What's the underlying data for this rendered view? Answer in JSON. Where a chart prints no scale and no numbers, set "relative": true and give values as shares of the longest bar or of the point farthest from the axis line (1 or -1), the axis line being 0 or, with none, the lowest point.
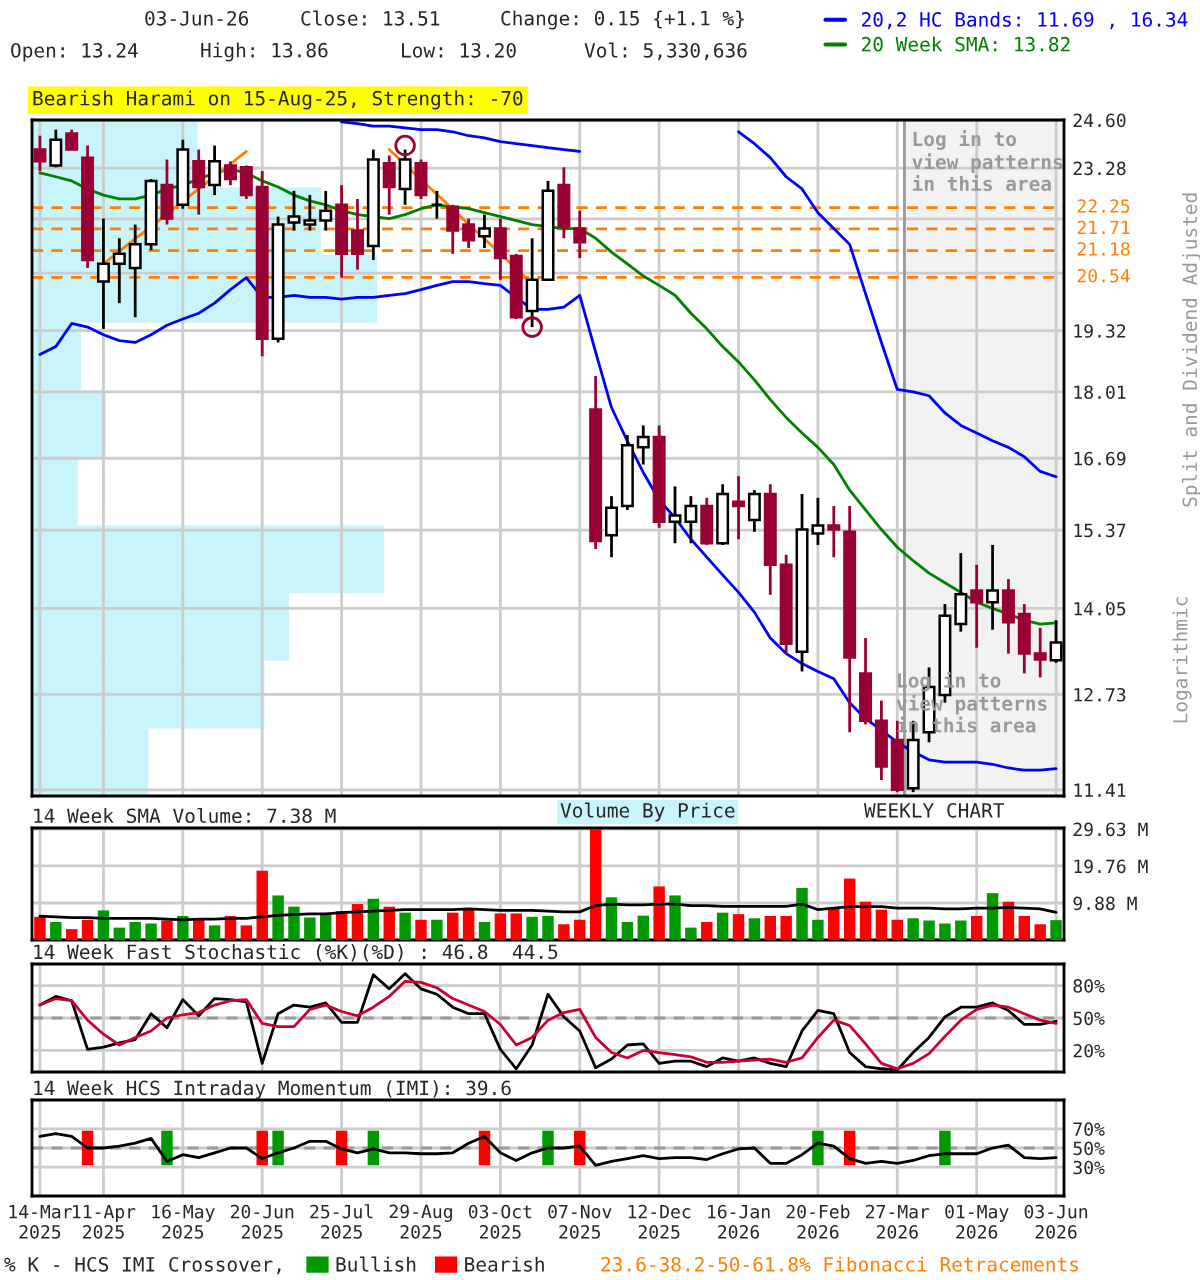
{
  "chart_data": [
    {
      "type": "candlestick",
      "log": true,
      "grid": true,
      "legend": "top right",
      "tick_labels": "y",
      "ylabel": "Split and Dividend Adjusted",
      "ylim": [
        11.33,
        24.6
      ],
      "yticks": [
        {
          "value": 11.41,
          "label": "11.41"
        },
        {
          "value": 12.73,
          "label": "12.73"
        },
        {
          "value": 14.05,
          "label": "14.05"
        },
        {
          "value": 15.37,
          "label": "15.37"
        },
        {
          "value": 16.69,
          "label": "16.69"
        },
        {
          "value": 18.01,
          "label": "18.01"
        },
        {
          "value": 19.32,
          "label": "19.32"
        },
        {
          "value": 20.64,
          "label": null
        },
        {
          "value": 21.96,
          "label": null
        },
        {
          "value": 23.28,
          "label": "23.28"
        },
        {
          "value": 24.6,
          "label": "24.60"
        }
      ],
      "categories": [
        "14-Mar\n2025",
        null,
        null,
        null,
        "11-Apr\n2025",
        null,
        null,
        null,
        null,
        "16-May\n2025",
        null,
        null,
        null,
        null,
        "20-Jun\n2025",
        null,
        null,
        null,
        null,
        "25-Jul\n2025",
        null,
        null,
        null,
        null,
        "29-Aug\n2025",
        null,
        null,
        null,
        null,
        "03-Oct\n2025",
        null,
        null,
        null,
        null,
        "07-Nov\n2025",
        null,
        null,
        null,
        null,
        "12-Dec\n2025",
        null,
        null,
        null,
        null,
        "16-Jan\n2026",
        null,
        null,
        null,
        null,
        "20-Feb\n2026",
        null,
        null,
        null,
        null,
        "27-Mar\n2026",
        null,
        null,
        null,
        null,
        "01-May\n2026",
        null,
        null,
        null,
        null,
        "03-Jun\n2026"
      ],
      "ohlc": [
        [
          23.78,
          24.16,
          23.2,
          23.46
        ],
        [
          23.35,
          24.33,
          23.3,
          24.05
        ],
        [
          24.22,
          24.33,
          23.78,
          23.78
        ],
        [
          23.56,
          23.89,
          20.76,
          20.95
        ],
        [
          20.44,
          21.97,
          19.36,
          20.86
        ],
        [
          20.86,
          21.48,
          19.94,
          21.1
        ],
        [
          20.76,
          21.82,
          19.62,
          21.33
        ],
        [
          21.33,
          22.99,
          21.19,
          22.94
        ],
        [
          22.83,
          23.51,
          21.82,
          21.97
        ],
        [
          22.32,
          24.05,
          22.22,
          23.78
        ],
        [
          23.46,
          23.78,
          22.07,
          22.78
        ],
        [
          22.83,
          23.89,
          22.57,
          23.46
        ],
        [
          23.35,
          23.46,
          22.83,
          22.99
        ],
        [
          23.3,
          23.35,
          22.47,
          22.57
        ],
        [
          22.78,
          23.2,
          18.76,
          19.14
        ],
        [
          19.14,
          22.02,
          19.06,
          21.82
        ],
        [
          21.87,
          22.68,
          21.67,
          22.02
        ],
        [
          21.82,
          22.57,
          21.67,
          21.92
        ],
        [
          21.92,
          22.68,
          21.67,
          22.17
        ],
        [
          22.32,
          22.83,
          20.53,
          21.1
        ],
        [
          21.67,
          22.47,
          20.72,
          21.1
        ],
        [
          21.29,
          23.78,
          20.95,
          23.51
        ],
        [
          23.41,
          23.62,
          22.07,
          22.78
        ],
        [
          22.73,
          23.78,
          22.32,
          23.51
        ],
        [
          23.41,
          23.51,
          22.47,
          22.57
        ],
        [
          22.32,
          22.68,
          21.97,
          22.32
        ],
        [
          22.27,
          22.32,
          21.1,
          21.67
        ],
        [
          21.82,
          21.97,
          21.24,
          21.43
        ],
        [
          21.53,
          22.07,
          21.24,
          21.72
        ],
        [
          21.72,
          21.97,
          20.48,
          21.0
        ],
        [
          21.05,
          21.1,
          19.58,
          19.62
        ],
        [
          19.76,
          21.48,
          19.4,
          20.48
        ],
        [
          20.48,
          22.94,
          20.46,
          22.68
        ],
        [
          22.83,
          23.3,
          21.48,
          21.77
        ],
        [
          21.72,
          22.17,
          21.0,
          21.38
        ],
        [
          17.65,
          18.34,
          15.04,
          15.18
        ],
        [
          15.28,
          15.98,
          14.9,
          15.77
        ],
        [
          15.8,
          17.14,
          15.73,
          16.94
        ],
        [
          16.9,
          17.33,
          16.57,
          17.1
        ],
        [
          17.1,
          17.33,
          15.41,
          15.52
        ],
        [
          15.52,
          16.16,
          15.14,
          15.63
        ],
        [
          15.52,
          15.98,
          15.14,
          15.8
        ],
        [
          15.8,
          15.95,
          15.11,
          15.14
        ],
        [
          15.14,
          16.2,
          15.11,
          16.02
        ],
        [
          15.88,
          16.35,
          15.21,
          15.8
        ],
        [
          15.55,
          16.09,
          15.34,
          16.02
        ],
        [
          16.02,
          16.2,
          14.27,
          14.77
        ],
        [
          14.77,
          14.94,
          13.34,
          13.49
        ],
        [
          13.37,
          16.02,
          13.07,
          15.38
        ],
        [
          15.31,
          15.95,
          15.11,
          15.45
        ],
        [
          15.45,
          15.8,
          14.9,
          15.38
        ],
        [
          15.34,
          15.8,
          12.19,
          13.28
        ],
        [
          13.04,
          13.58,
          12.3,
          12.35
        ],
        [
          12.35,
          12.64,
          11.54,
          11.72
        ],
        [
          12.08,
          12.35,
          11.38,
          11.41
        ],
        [
          11.43,
          12.35,
          11.38,
          12.08
        ],
        [
          12.19,
          13.13,
          12.05,
          12.84
        ],
        [
          12.72,
          14.12,
          12.61,
          13.93
        ],
        [
          13.8,
          14.97,
          13.68,
          14.28
        ],
        [
          14.34,
          14.77,
          13.43,
          14.15
        ],
        [
          14.15,
          15.11,
          13.71,
          14.34
        ],
        [
          14.34,
          14.53,
          13.34,
          13.83
        ],
        [
          13.96,
          14.12,
          13.04,
          13.34
        ],
        [
          13.34,
          13.74,
          12.98,
          13.25
        ],
        [
          13.24,
          13.86,
          13.2,
          13.51
        ]
      ],
      "series": [
        {
          "type": "line",
          "name": "20,2 HC Bands: 11.69 , 16.34",
          "color": "#0000ff",
          "values": [
            null,
            null,
            null,
            null,
            null,
            null,
            null,
            null,
            null,
            null,
            null,
            null,
            null,
            null,
            null,
            null,
            null,
            null,
            null,
            24.55,
            24.5,
            24.43,
            24.43,
            24.38,
            24.33,
            24.33,
            24.27,
            24.16,
            24.1,
            24.0,
            23.94,
            23.89,
            23.83,
            23.78,
            23.73,
            null,
            null,
            null,
            null,
            null,
            null,
            null,
            null,
            null,
            24.27,
            23.94,
            23.56,
            23.05,
            22.73,
            22.12,
            21.72,
            21.33,
            20.16,
            19.06,
            18.06,
            18.01,
            17.93,
            17.58,
            17.33,
            17.18,
            17.03,
            16.9,
            16.72,
            16.44,
            16.34
          ]
        },
        {
          "type": "line",
          "color": "#0000ff",
          "values": [
            18.8,
            18.97,
            19.48,
            19.4,
            19.23,
            19.1,
            19.06,
            19.23,
            19.44,
            19.58,
            19.71,
            19.94,
            20.25,
            20.53,
            20.07,
            20.07,
            20.12,
            20.07,
            20.07,
            20.03,
            20.07,
            20.07,
            20.12,
            20.16,
            20.25,
            20.35,
            20.44,
            20.44,
            20.39,
            20.35,
            20.07,
            19.8,
            19.8,
            19.85,
            20.12,
            18.85,
            17.69,
            17.02,
            16.42,
            15.91,
            15.59,
            15.21,
            14.9,
            14.6,
            14.31,
            13.99,
            13.58,
            13.34,
            13.19,
            13.07,
            12.96,
            12.61,
            12.38,
            12.22,
            12.05,
            11.92,
            11.81,
            11.78,
            11.78,
            11.78,
            11.75,
            11.7,
            11.67,
            11.67,
            11.69
          ]
        },
        {
          "type": "line",
          "name": "20 Week SMA: 13.82",
          "color": "#008000",
          "values": [
            23.15,
            23.05,
            22.94,
            22.73,
            22.57,
            22.47,
            22.47,
            22.57,
            22.73,
            22.83,
            22.99,
            23.15,
            23.25,
            23.15,
            22.94,
            22.78,
            22.57,
            22.42,
            22.32,
            22.17,
            22.07,
            22.02,
            21.97,
            22.07,
            22.22,
            22.32,
            22.27,
            22.22,
            22.12,
            22.02,
            21.92,
            21.82,
            21.77,
            21.72,
            21.72,
            21.48,
            21.14,
            20.86,
            20.57,
            20.35,
            20.12,
            19.71,
            19.36,
            18.97,
            18.64,
            18.26,
            17.85,
            17.49,
            17.18,
            16.9,
            16.57,
            16.09,
            15.73,
            15.38,
            15.07,
            14.84,
            14.63,
            14.47,
            14.31,
            14.15,
            14.05,
            13.96,
            13.86,
            13.8,
            13.82
          ]
        },
        {
          "type": "line",
          "color": "#ff7f00",
          "values": [
            null,
            null,
            null,
            null,
            20.86,
            21.16,
            21.47,
            21.77,
            22.09,
            22.41,
            22.73,
            23.06,
            23.39,
            23.73,
            null,
            null,
            null,
            null,
            null,
            null,
            null,
            null,
            null,
            null,
            null,
            null,
            null,
            null,
            null,
            null,
            null,
            null,
            null,
            null,
            null,
            null,
            null,
            null,
            null,
            null,
            null,
            null,
            null,
            null,
            null,
            null,
            null,
            null,
            null,
            null,
            null,
            null,
            null,
            null,
            null,
            null,
            null,
            null,
            null,
            null,
            null,
            null,
            null,
            null,
            null
          ]
        },
        {
          "type": "line",
          "color": "#ff7f00",
          "values": [
            null,
            null,
            null,
            null,
            null,
            null,
            null,
            null,
            null,
            null,
            null,
            null,
            null,
            null,
            null,
            null,
            null,
            null,
            null,
            null,
            null,
            null,
            23.78,
            23.37,
            22.98,
            22.59,
            22.21,
            21.83,
            21.47,
            21.1,
            20.75,
            20.39,
            null,
            null,
            null,
            null,
            null,
            null,
            null,
            null,
            null,
            null,
            null,
            null,
            null,
            null,
            null,
            null,
            null,
            null,
            null,
            null,
            null,
            null,
            null,
            null,
            null,
            null,
            null,
            null,
            null,
            null,
            null,
            null,
            null
          ]
        },
        {
          "type": "scatter",
          "marker": "circle",
          "color": "#990033",
          "values": [
            null,
            null,
            null,
            null,
            null,
            null,
            null,
            null,
            null,
            null,
            null,
            null,
            null,
            null,
            null,
            null,
            null,
            null,
            null,
            null,
            null,
            null,
            null,
            23.89,
            null,
            null,
            null,
            null,
            null,
            null,
            null,
            19.4,
            null,
            null,
            null,
            null,
            null,
            null,
            null,
            null,
            null,
            null,
            null,
            null,
            null,
            null,
            null,
            null,
            null,
            null,
            null,
            null,
            null,
            null,
            null,
            null,
            null,
            null,
            null,
            null,
            null,
            null,
            null,
            null,
            null
          ]
        }
      ],
      "ref_lines": [
        {
          "axis": "y",
          "value": 22.25,
          "label": "22.25",
          "color": "#ff7f00",
          "line_style": "dashed"
        },
        {
          "axis": "y",
          "value": 21.71,
          "label": "21.71",
          "color": "#ff7f00",
          "line_style": "dashed"
        },
        {
          "axis": "y",
          "value": 21.18,
          "label": "21.18",
          "color": "#ff7f00",
          "line_style": "dashed"
        },
        {
          "axis": "y",
          "value": 20.54,
          "label": "20.54",
          "color": "#ff7f00",
          "line_style": "dashed"
        }
      ],
      "bands": [
        {
          "axis": "x",
          "from": "27-Mar\n2026",
          "to": "03-Jun\n2026",
          "label": "Log in to\nview patterns\nin this area",
          "color": "#f2f2f2"
        }
      ],
      "annotations": [
        "03-Jun-26",
        "Close: 13.51",
        "Change: 0.15 {+1.1 %}",
        "Open: 13.24",
        "High: 13.86",
        "Low: 13.20",
        "Vol: 5,330,636",
        "Bearish Harami on 15-Aug-25, Strength: -70",
        "Log in to\nview patterns\nin this area",
        "WEEKLY CHART",
        "Logarithmic",
        "Volume By Price"
      ]
    },
    {
      "type": "bar",
      "orientation": "horizontal",
      "relative": true,
      "categories": [
        null,
        null,
        null,
        null,
        null,
        null,
        null,
        null,
        null,
        null
      ],
      "series": [
        {
          "color": "#c8f4fc",
          "values": [
            0.47,
            0.82,
            0.98,
            0.14,
            0.21,
            0.13,
            1,
            0.73,
            0.66,
            0.33
          ]
        }
      ]
    },
    {
      "type": "bar",
      "grid": true,
      "tick_labels": "y",
      "title": "14 Week SMA Volume: 7.38 M",
      "categories": [
        "14-Mar\n2025",
        null,
        null,
        null,
        "11-Apr\n2025",
        null,
        null,
        null,
        null,
        "16-May\n2025",
        null,
        null,
        null,
        null,
        "20-Jun\n2025",
        null,
        null,
        null,
        null,
        "25-Jul\n2025",
        null,
        null,
        null,
        null,
        "29-Aug\n2025",
        null,
        null,
        null,
        null,
        "03-Oct\n2025",
        null,
        null,
        null,
        null,
        "07-Nov\n2025",
        null,
        null,
        null,
        null,
        "12-Dec\n2025",
        null,
        null,
        null,
        null,
        "16-Jan\n2026",
        null,
        null,
        null,
        null,
        "20-Feb\n2026",
        null,
        null,
        null,
        null,
        "27-Mar\n2026",
        null,
        null,
        null,
        null,
        "01-May\n2026",
        null,
        null,
        null,
        null,
        "03-Jun\n2026"
      ],
      "ylim": [
        0,
        29.9
      ],
      "yticks": [
        {
          "value": 9.88,
          "label": "9.88 M"
        },
        {
          "value": 19.76,
          "label": "19.76 M"
        },
        {
          "value": 29.63,
          "label": "29.63 M"
        }
      ],
      "series": [
        {
          "type": "bar",
          "colors": [
            "#ff0000",
            "#009900",
            "#ff0000",
            "#ff0000",
            "#009900",
            "#009900",
            "#009900",
            "#009900",
            "#ff0000",
            "#009900",
            "#ff0000",
            "#009900",
            "#ff0000",
            "#ff0000",
            "#ff0000",
            "#009900",
            "#009900",
            "#009900",
            "#009900",
            "#ff0000",
            "#ff0000",
            "#009900",
            "#ff0000",
            "#009900",
            "#ff0000",
            "#009900",
            "#ff0000",
            "#ff0000",
            "#009900",
            "#ff0000",
            "#ff0000",
            "#009900",
            "#009900",
            "#ff0000",
            "#ff0000",
            "#ff0000",
            "#009900",
            "#009900",
            "#009900",
            "#ff0000",
            "#009900",
            "#009900",
            "#ff0000",
            "#009900",
            "#ff0000",
            "#009900",
            "#ff0000",
            "#ff0000",
            "#009900",
            "#009900",
            "#ff0000",
            "#ff0000",
            "#ff0000",
            "#ff0000",
            "#ff0000",
            "#009900",
            "#009900",
            "#009900",
            "#009900",
            "#ff0000",
            "#009900",
            "#ff0000",
            "#ff0000",
            "#ff0000",
            "#009900"
          ],
          "values": [
            6.2,
            4.8,
            2.9,
            5.4,
            7.9,
            3.3,
            4.8,
            4.4,
            5.2,
            6.4,
            5.8,
            3.9,
            6.4,
            3.9,
            18.5,
            11.9,
            8.9,
            6.0,
            6.7,
            7.7,
            9.6,
            11.0,
            8.9,
            7.3,
            5.4,
            5.4,
            7.3,
            8.5,
            4.8,
            7.1,
            7.1,
            6.2,
            6.4,
            4.2,
            5.4,
            29.6,
            11.4,
            4.8,
            6.5,
            14.3,
            11.9,
            3.3,
            4.8,
            7.3,
            6.9,
            5.8,
            6.4,
            6.4,
            13.9,
            5.4,
            8.3,
            16.4,
            10.2,
            8.1,
            5.4,
            5.8,
            5.2,
            4.4,
            5.2,
            6.4,
            12.5,
            10.2,
            6.4,
            4.2,
            5.3
          ]
        },
        {
          "type": "line",
          "color": "#000000",
          "values": [
            6.4,
            6.2,
            6.0,
            6.0,
            5.8,
            5.8,
            5.8,
            5.8,
            5.6,
            5.4,
            5.6,
            5.6,
            5.8,
            5.8,
            6.2,
            6.6,
            6.8,
            7.0,
            7.0,
            7.3,
            7.5,
            7.7,
            7.9,
            8.1,
            8.1,
            8.1,
            8.1,
            8.3,
            8.1,
            7.9,
            7.9,
            7.9,
            7.7,
            7.5,
            7.5,
            9.2,
            9.6,
            9.4,
            9.4,
            9.6,
            9.6,
            9.2,
            9.2,
            9.0,
            9.0,
            9.0,
            9.0,
            9.0,
            9.6,
            8.1,
            8.5,
            8.9,
            8.9,
            8.9,
            8.5,
            8.5,
            8.5,
            8.3,
            8.3,
            8.5,
            8.5,
            8.7,
            8.5,
            8.3,
            7.4
          ]
        }
      ]
    },
    {
      "type": "line",
      "grid": true,
      "tick_labels": "y",
      "title": "14 Week Fast Stochastic (%K)(%D) : 46.8  44.5",
      "categories": [
        "14-Mar\n2025",
        null,
        null,
        null,
        "11-Apr\n2025",
        null,
        null,
        null,
        null,
        "16-May\n2025",
        null,
        null,
        null,
        null,
        "20-Jun\n2025",
        null,
        null,
        null,
        null,
        "25-Jul\n2025",
        null,
        null,
        null,
        null,
        "29-Aug\n2025",
        null,
        null,
        null,
        null,
        "03-Oct\n2025",
        null,
        null,
        null,
        null,
        "07-Nov\n2025",
        null,
        null,
        null,
        null,
        "12-Dec\n2025",
        null,
        null,
        null,
        null,
        "16-Jan\n2026",
        null,
        null,
        null,
        null,
        "20-Feb\n2026",
        null,
        null,
        null,
        null,
        "27-Mar\n2026",
        null,
        null,
        null,
        null,
        "01-May\n2026",
        null,
        null,
        null,
        null,
        "03-Jun\n2026"
      ],
      "ylim": [
        0,
        100
      ],
      "yticks": [
        {
          "value": 20,
          "label": "20%"
        },
        {
          "value": 50,
          "label": "50%"
        },
        {
          "value": 80,
          "label": "80%"
        }
      ],
      "ref_lines": [
        {
          "axis": "y",
          "value": 50,
          "color": "#999999",
          "line_style": "dashed"
        }
      ],
      "series": [
        {
          "type": "line",
          "color": "#000000",
          "values": [
            62,
            70,
            66,
            21,
            23,
            27,
            30,
            54,
            41,
            67,
            52,
            68,
            67,
            65,
            8,
            54,
            62,
            60,
            64,
            46,
            46,
            90,
            77,
            91,
            77,
            72,
            60,
            54,
            54,
            21,
            3,
            25,
            72,
            51,
            38,
            4,
            12,
            25,
            26,
            8,
            10,
            10,
            5,
            13,
            10,
            13,
            8,
            5,
            38,
            57,
            54,
            18,
            5,
            3,
            2,
            18,
            32,
            51,
            60,
            60,
            64,
            57,
            44,
            44,
            47
          ]
        },
        {
          "type": "line",
          "color": "#cc0033",
          "values": [
            62,
            68,
            66,
            48,
            35,
            25,
            32,
            38,
            50,
            53,
            55,
            62,
            66,
            67,
            45,
            42,
            42,
            58,
            62,
            56,
            52,
            60,
            70,
            84,
            83,
            78,
            68,
            62,
            56,
            44,
            25,
            32,
            48,
            55,
            58,
            32,
            18,
            13,
            20,
            18,
            16,
            14,
            9,
            9,
            10,
            11,
            12,
            9,
            13,
            32,
            48,
            43,
            26,
            8,
            3,
            8,
            17,
            33,
            48,
            58,
            62,
            60,
            54,
            48,
            45
          ]
        }
      ]
    },
    {
      "type": "line",
      "grid": true,
      "title": "14 Week HCS Intraday Momentum (IMI): 39.6",
      "legend": "bottom",
      "categories": [
        "14-Mar\n2025",
        null,
        null,
        null,
        "11-Apr\n2025",
        null,
        null,
        null,
        null,
        "16-May\n2025",
        null,
        null,
        null,
        null,
        "20-Jun\n2025",
        null,
        null,
        null,
        null,
        "25-Jul\n2025",
        null,
        null,
        null,
        null,
        "29-Aug\n2025",
        null,
        null,
        null,
        null,
        "03-Oct\n2025",
        null,
        null,
        null,
        null,
        "07-Nov\n2025",
        null,
        null,
        null,
        null,
        "12-Dec\n2025",
        null,
        null,
        null,
        null,
        "16-Jan\n2026",
        null,
        null,
        null,
        null,
        "20-Feb\n2026",
        null,
        null,
        null,
        null,
        "27-Mar\n2026",
        null,
        null,
        null,
        null,
        "01-May\n2026",
        null,
        null,
        null,
        null,
        "03-Jun\n2026"
      ],
      "ylim": [
        0,
        100
      ],
      "yticks": [
        {
          "value": 30,
          "label": "30%"
        },
        {
          "value": 50,
          "label": "50%"
        },
        {
          "value": 70,
          "label": "70%"
        }
      ],
      "ref_lines": [
        {
          "axis": "y",
          "value": 50,
          "color": "#999999",
          "line_style": "dashed"
        }
      ],
      "series": [
        {
          "type": "bar",
          "name": "Bullish",
          "color": "#009900",
          "base": [
            null,
            null,
            null,
            null,
            null,
            null,
            null,
            null,
            32,
            null,
            null,
            null,
            null,
            null,
            null,
            32,
            null,
            null,
            null,
            null,
            null,
            32,
            null,
            null,
            null,
            null,
            null,
            null,
            null,
            null,
            null,
            null,
            32,
            null,
            null,
            null,
            null,
            null,
            null,
            null,
            null,
            null,
            null,
            null,
            null,
            null,
            null,
            null,
            null,
            32,
            null,
            null,
            null,
            null,
            null,
            null,
            null,
            32,
            null,
            null,
            null,
            null,
            null,
            null,
            null
          ],
          "values": [
            null,
            null,
            null,
            null,
            null,
            null,
            null,
            null,
            36,
            null,
            null,
            null,
            null,
            null,
            null,
            36,
            null,
            null,
            null,
            null,
            null,
            36,
            null,
            null,
            null,
            null,
            null,
            null,
            null,
            null,
            null,
            null,
            36,
            null,
            null,
            null,
            null,
            null,
            null,
            null,
            null,
            null,
            null,
            null,
            null,
            null,
            null,
            null,
            null,
            36,
            null,
            null,
            null,
            null,
            null,
            null,
            null,
            36,
            null,
            null,
            null,
            null,
            null,
            null,
            null
          ]
        },
        {
          "type": "bar",
          "name": "Bearish",
          "color": "#ff0000",
          "base": [
            null,
            null,
            null,
            32,
            null,
            null,
            null,
            null,
            null,
            null,
            null,
            null,
            null,
            null,
            32,
            null,
            null,
            null,
            null,
            32,
            null,
            null,
            null,
            null,
            null,
            null,
            null,
            null,
            32,
            null,
            null,
            null,
            null,
            null,
            32,
            null,
            null,
            null,
            null,
            null,
            null,
            null,
            null,
            null,
            null,
            null,
            null,
            null,
            null,
            null,
            null,
            32,
            null,
            null,
            null,
            null,
            null,
            null,
            null,
            null,
            null,
            null,
            null,
            null,
            null
          ],
          "values": [
            null,
            null,
            null,
            36,
            null,
            null,
            null,
            null,
            null,
            null,
            null,
            null,
            null,
            null,
            36,
            null,
            null,
            null,
            null,
            36,
            null,
            null,
            null,
            null,
            null,
            null,
            null,
            null,
            36,
            null,
            null,
            null,
            null,
            null,
            36,
            null,
            null,
            null,
            null,
            null,
            null,
            null,
            null,
            null,
            null,
            null,
            null,
            null,
            null,
            null,
            null,
            36,
            null,
            null,
            null,
            null,
            null,
            null,
            null,
            null,
            null,
            null,
            null,
            null,
            null
          ]
        },
        {
          "type": "line",
          "color": "#000000",
          "values": [
            62,
            65,
            62,
            50,
            50,
            52,
            55,
            60,
            36,
            43,
            40,
            45,
            50,
            50,
            39,
            45,
            50,
            57,
            57,
            49,
            45,
            49,
            45,
            45,
            44,
            44,
            45,
            55,
            62,
            45,
            37,
            45,
            50,
            50,
            52,
            32,
            36,
            39,
            42,
            39,
            40,
            40,
            38,
            44,
            49,
            50,
            34,
            34,
            43,
            55,
            52,
            39,
            34,
            36,
            34,
            37,
            42,
            44,
            44,
            44,
            50,
            53,
            40,
            39,
            40
          ]
        }
      ],
      "annotations": [
        "% K - HCS IMI Crossover,",
        "23.6-38.2-50-61.8% Fibonacci Retracements"
      ]
    }
  ]
}
